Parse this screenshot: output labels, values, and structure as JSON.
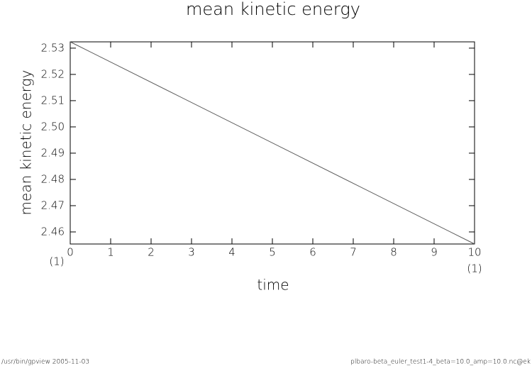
{
  "chart_data": {
    "type": "line",
    "title": "mean kinetic energy",
    "x_label": "time",
    "y_label": "mean kinetic energy",
    "x": [
      0,
      10
    ],
    "series": [
      {
        "name": "mean kinetic energy",
        "color": "#555555",
        "values": [
          2.5324,
          2.4554
        ]
      }
    ],
    "xlim": [
      0,
      10
    ],
    "xticks": [
      0,
      1,
      2,
      3,
      4,
      5,
      6,
      7,
      8,
      9,
      10
    ],
    "ylim": [
      2.4554,
      2.5324
    ],
    "yticks": [
      2.46,
      2.47,
      2.48,
      2.49,
      {
        "value": 2.5,
        "label": "2.50"
      },
      2.51,
      2.52,
      2.53
    ],
    "x_unit_labels": [
      "(1)",
      "(1)"
    ]
  },
  "footer": {
    "left": "/usr/bin/gpview   2005-11-03",
    "right": "plbaro-beta_euler_test1-4_beta=10.0_amp=10.0.nc@ek"
  }
}
